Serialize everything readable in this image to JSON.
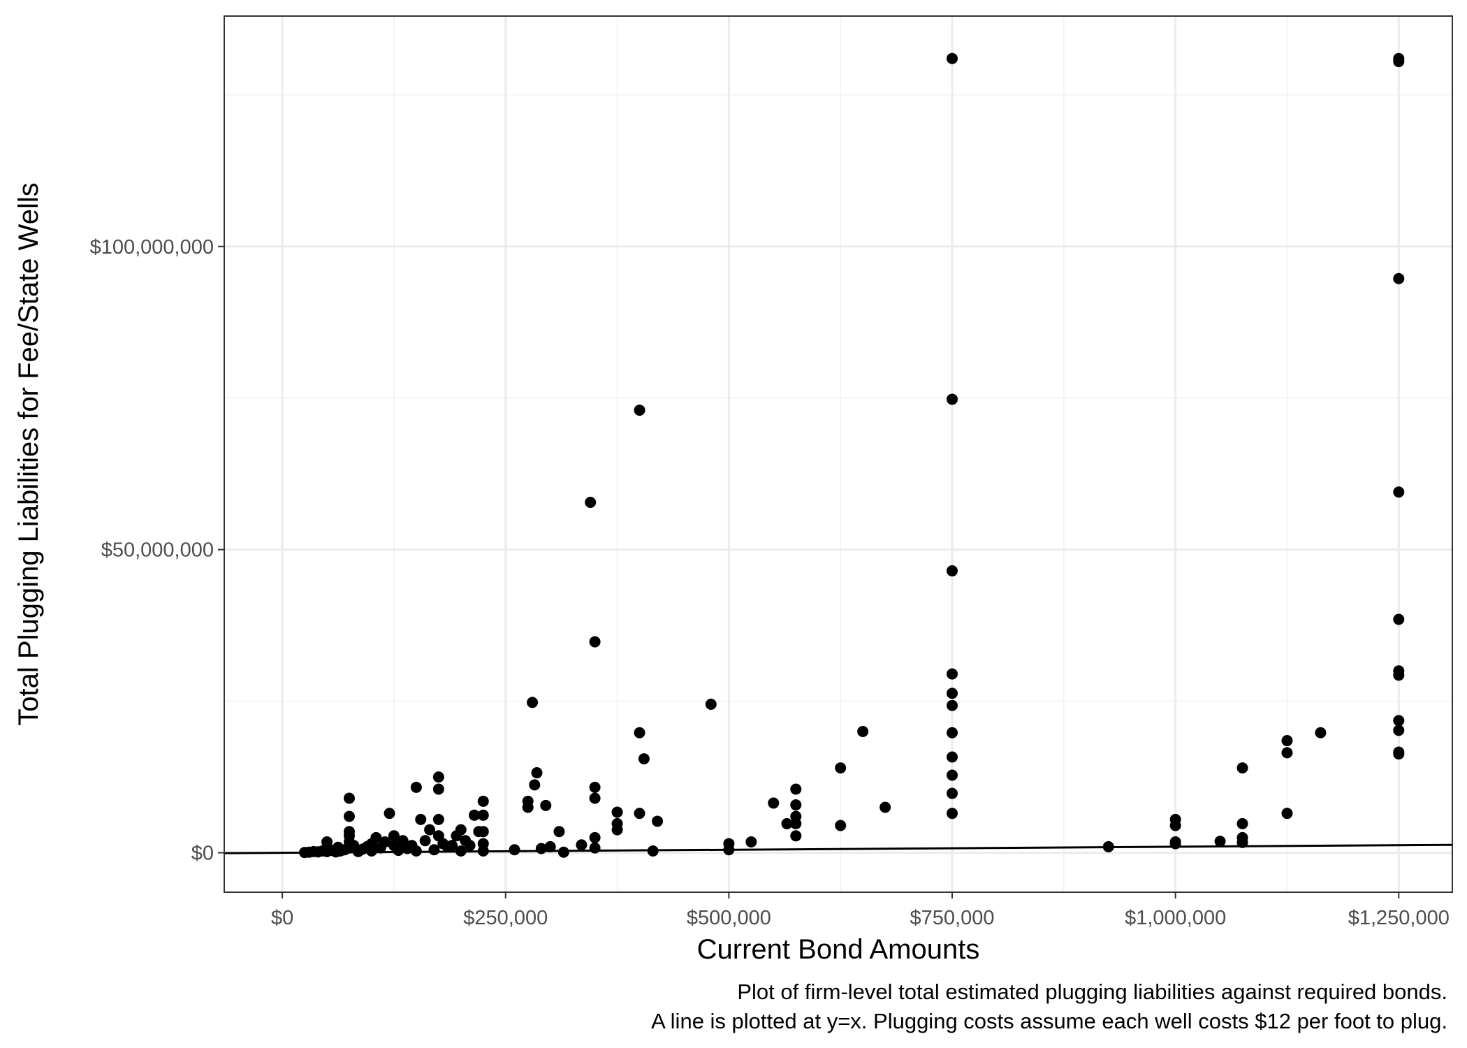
{
  "chart_data": {
    "type": "scatter",
    "title": "",
    "xlabel": "Current Bond Amounts",
    "ylabel": "Total Plugging Liabilities for Fee/State Wells",
    "caption": [
      "Plot of firm-level total estimated plugging liabilities against required bonds.",
      "A line is plotted at y=x. Plugging costs assume each well costs $12 per foot to plug."
    ],
    "xlim": [
      -65000,
      1310000
    ],
    "ylim": [
      -6500000,
      138000000
    ],
    "x_ticks": [
      0,
      250000,
      500000,
      750000,
      1000000,
      1250000
    ],
    "x_tick_labels": [
      "$0",
      "$250,000",
      "$500,000",
      "$750,000",
      "$1,000,000",
      "$1,250,000"
    ],
    "y_ticks": [
      0,
      50000000,
      100000000
    ],
    "y_tick_labels": [
      "$0",
      "$50,000,000",
      "$100,000,000"
    ],
    "grid": true,
    "theme": "bw",
    "point_color": "#000000",
    "reference_line": {
      "label": "y=x",
      "slope": 1,
      "intercept": 0,
      "color": "#000000"
    },
    "points": [
      [
        25000,
        50000
      ],
      [
        30000,
        100000
      ],
      [
        35000,
        200000
      ],
      [
        40000,
        150000
      ],
      [
        45000,
        300000
      ],
      [
        50000,
        1800000
      ],
      [
        50000,
        800000
      ],
      [
        50000,
        200000
      ],
      [
        55000,
        400000
      ],
      [
        60000,
        150000
      ],
      [
        62500,
        900000
      ],
      [
        65000,
        300000
      ],
      [
        70000,
        500000
      ],
      [
        75000,
        9000000
      ],
      [
        75000,
        6000000
      ],
      [
        75000,
        3500000
      ],
      [
        75000,
        2800000
      ],
      [
        75000,
        1800000
      ],
      [
        75000,
        800000
      ],
      [
        80000,
        1200000
      ],
      [
        85000,
        200000
      ],
      [
        90000,
        600000
      ],
      [
        95000,
        1000000
      ],
      [
        100000,
        300000
      ],
      [
        100000,
        1500000
      ],
      [
        105000,
        2500000
      ],
      [
        110000,
        800000
      ],
      [
        115000,
        1800000
      ],
      [
        120000,
        6500000
      ],
      [
        125000,
        2800000
      ],
      [
        125000,
        1200000
      ],
      [
        130000,
        400000
      ],
      [
        135000,
        2000000
      ],
      [
        140000,
        700000
      ],
      [
        145000,
        1200000
      ],
      [
        150000,
        10800000
      ],
      [
        150000,
        300000
      ],
      [
        155000,
        5500000
      ],
      [
        160000,
        2000000
      ],
      [
        165000,
        3800000
      ],
      [
        170000,
        500000
      ],
      [
        175000,
        12500000
      ],
      [
        175000,
        10500000
      ],
      [
        175000,
        5500000
      ],
      [
        175000,
        2800000
      ],
      [
        180000,
        1500000
      ],
      [
        185000,
        1000000
      ],
      [
        190000,
        1200000
      ],
      [
        195000,
        2800000
      ],
      [
        200000,
        3800000
      ],
      [
        200000,
        300000
      ],
      [
        205000,
        2000000
      ],
      [
        210000,
        1200000
      ],
      [
        215000,
        6200000
      ],
      [
        220000,
        3500000
      ],
      [
        225000,
        8500000
      ],
      [
        225000,
        6200000
      ],
      [
        225000,
        3500000
      ],
      [
        225000,
        1500000
      ],
      [
        225000,
        300000
      ],
      [
        260000,
        500000
      ],
      [
        275000,
        8500000
      ],
      [
        275000,
        7500000
      ],
      [
        280000,
        24800000
      ],
      [
        282500,
        11200000
      ],
      [
        285000,
        13200000
      ],
      [
        290000,
        700000
      ],
      [
        295000,
        7800000
      ],
      [
        300000,
        1000000
      ],
      [
        310000,
        3500000
      ],
      [
        315000,
        100000
      ],
      [
        335000,
        1300000
      ],
      [
        345000,
        57800000
      ],
      [
        350000,
        34800000
      ],
      [
        350000,
        10800000
      ],
      [
        350000,
        9000000
      ],
      [
        350000,
        2500000
      ],
      [
        350000,
        800000
      ],
      [
        375000,
        6700000
      ],
      [
        375000,
        4800000
      ],
      [
        375000,
        3800000
      ],
      [
        400000,
        73000000
      ],
      [
        400000,
        19800000
      ],
      [
        400000,
        6500000
      ],
      [
        405000,
        15500000
      ],
      [
        415000,
        300000
      ],
      [
        420000,
        5200000
      ],
      [
        480000,
        24500000
      ],
      [
        500000,
        1500000
      ],
      [
        500000,
        500000
      ],
      [
        525000,
        1800000
      ],
      [
        550000,
        8200000
      ],
      [
        575000,
        10500000
      ],
      [
        575000,
        7900000
      ],
      [
        575000,
        6000000
      ],
      [
        575000,
        4800000
      ],
      [
        575000,
        2800000
      ],
      [
        565000,
        4800000
      ],
      [
        625000,
        14000000
      ],
      [
        625000,
        4500000
      ],
      [
        650000,
        20000000
      ],
      [
        675000,
        7500000
      ],
      [
        750000,
        131000000
      ],
      [
        750000,
        74800000
      ],
      [
        750000,
        46500000
      ],
      [
        750000,
        29500000
      ],
      [
        750000,
        26300000
      ],
      [
        750000,
        24300000
      ],
      [
        750000,
        19800000
      ],
      [
        750000,
        15800000
      ],
      [
        750000,
        12800000
      ],
      [
        750000,
        9800000
      ],
      [
        750000,
        6500000
      ],
      [
        925000,
        1000000
      ],
      [
        1000000,
        5500000
      ],
      [
        1000000,
        4500000
      ],
      [
        1000000,
        1800000
      ],
      [
        1000000,
        1500000
      ],
      [
        1050000,
        1900000
      ],
      [
        1075000,
        14000000
      ],
      [
        1075000,
        4800000
      ],
      [
        1075000,
        2500000
      ],
      [
        1075000,
        1700000
      ],
      [
        1125000,
        18500000
      ],
      [
        1125000,
        16500000
      ],
      [
        1125000,
        6500000
      ],
      [
        1162500,
        19800000
      ],
      [
        1250000,
        131000000
      ],
      [
        1250000,
        130500000
      ],
      [
        1250000,
        94700000
      ],
      [
        1250000,
        59500000
      ],
      [
        1250000,
        38500000
      ],
      [
        1250000,
        30000000
      ],
      [
        1250000,
        29300000
      ],
      [
        1250000,
        21800000
      ],
      [
        1250000,
        20200000
      ],
      [
        1250000,
        16600000
      ],
      [
        1250000,
        16300000
      ]
    ]
  }
}
